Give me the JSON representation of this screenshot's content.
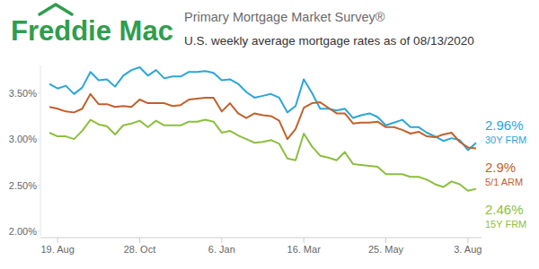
{
  "chart_data": {
    "type": "line",
    "brand": "Freddie Mac",
    "title": "Primary Mortgage Market Survey®",
    "subtitle": "U.S. weekly average mortgage rates as of 08/13/2020",
    "categories": [
      null,
      "19. Aug",
      null,
      null,
      null,
      null,
      null,
      null,
      null,
      null,
      null,
      "28. Oct",
      null,
      null,
      null,
      null,
      null,
      null,
      null,
      null,
      null,
      "6. Jan",
      null,
      null,
      null,
      null,
      null,
      null,
      null,
      null,
      null,
      "16. Mar",
      null,
      null,
      null,
      null,
      null,
      null,
      null,
      null,
      null,
      "25. May",
      null,
      null,
      null,
      null,
      null,
      null,
      null,
      null,
      null,
      "3. Aug",
      null
    ],
    "series": [
      {
        "name": "30Y FRM",
        "color": "#2ba6d8",
        "values": [
          3.6,
          3.55,
          3.58,
          3.49,
          3.56,
          3.73,
          3.64,
          3.65,
          3.57,
          3.69,
          3.75,
          3.78,
          3.69,
          3.75,
          3.66,
          3.68,
          3.68,
          3.73,
          3.73,
          3.74,
          3.72,
          3.64,
          3.65,
          3.6,
          3.51,
          3.45,
          3.47,
          3.49,
          3.45,
          3.29,
          3.36,
          3.65,
          3.5,
          3.33,
          3.33,
          3.31,
          3.33,
          3.23,
          3.26,
          3.28,
          3.24,
          3.15,
          3.18,
          3.21,
          3.13,
          3.13,
          3.07,
          3.03,
          2.98,
          3.01,
          2.99,
          2.88,
          2.96
        ],
        "value_labels": [
          null,
          null,
          null,
          null,
          null,
          null,
          null,
          null,
          null,
          null,
          null,
          null,
          null,
          null,
          null,
          null,
          null,
          null,
          null,
          null,
          null,
          null,
          null,
          null,
          null,
          null,
          null,
          null,
          null,
          null,
          null,
          null,
          null,
          null,
          null,
          null,
          null,
          null,
          null,
          null,
          null,
          null,
          null,
          null,
          null,
          null,
          null,
          null,
          null,
          null,
          null,
          null,
          "2.96%"
        ]
      },
      {
        "name": "5/1 ARM",
        "color": "#c0612b",
        "values": [
          3.35,
          3.33,
          3.3,
          3.29,
          3.33,
          3.49,
          3.38,
          3.38,
          3.35,
          3.36,
          3.35,
          3.43,
          3.39,
          3.39,
          3.39,
          3.36,
          3.37,
          3.43,
          3.44,
          3.45,
          3.45,
          3.3,
          3.39,
          3.28,
          3.23,
          3.28,
          3.26,
          3.25,
          3.2,
          3.0,
          3.11,
          3.34,
          3.39,
          3.4,
          3.34,
          3.28,
          3.28,
          3.17,
          3.18,
          3.18,
          3.19,
          3.13,
          3.13,
          3.1,
          3.06,
          3.08,
          3.03,
          3.02,
          3.05,
          3.07,
          2.97,
          2.91,
          2.9
        ],
        "value_labels": [
          null,
          null,
          null,
          null,
          null,
          null,
          null,
          null,
          null,
          null,
          null,
          null,
          null,
          null,
          null,
          null,
          null,
          null,
          null,
          null,
          null,
          null,
          null,
          null,
          null,
          null,
          null,
          null,
          null,
          null,
          null,
          null,
          null,
          null,
          null,
          null,
          null,
          null,
          null,
          null,
          null,
          null,
          null,
          null,
          null,
          null,
          null,
          null,
          null,
          null,
          null,
          null,
          "2.9%"
        ]
      },
      {
        "name": "15Y FRM",
        "color": "#8cbf3f",
        "values": [
          3.07,
          3.03,
          3.03,
          3.0,
          3.09,
          3.21,
          3.16,
          3.14,
          3.05,
          3.15,
          3.17,
          3.2,
          3.13,
          3.2,
          3.15,
          3.15,
          3.15,
          3.19,
          3.19,
          3.21,
          3.19,
          3.07,
          3.09,
          3.04,
          3.0,
          2.96,
          2.97,
          2.99,
          2.95,
          2.79,
          2.77,
          3.06,
          2.92,
          2.82,
          2.8,
          2.77,
          2.86,
          2.73,
          2.72,
          2.71,
          2.7,
          2.62,
          2.62,
          2.62,
          2.59,
          2.59,
          2.56,
          2.51,
          2.48,
          2.54,
          2.51,
          2.44,
          2.46
        ],
        "value_labels": [
          null,
          null,
          null,
          null,
          null,
          null,
          null,
          null,
          null,
          null,
          null,
          null,
          null,
          null,
          null,
          null,
          null,
          null,
          null,
          null,
          null,
          null,
          null,
          null,
          null,
          null,
          null,
          null,
          null,
          null,
          null,
          null,
          null,
          null,
          null,
          null,
          null,
          null,
          null,
          null,
          null,
          null,
          null,
          null,
          null,
          null,
          null,
          null,
          null,
          null,
          null,
          null,
          "2.46%"
        ]
      }
    ],
    "ylim": [
      1.95,
      3.8
    ],
    "yticks": [
      {
        "value": 2,
        "label": "2.00%"
      },
      {
        "value": 2.5,
        "label": "2.50%"
      },
      {
        "value": 3,
        "label": "3.00%"
      },
      {
        "value": 3.5,
        "label": "3.50%"
      }
    ],
    "grid": false,
    "legend": "right",
    "marker": "none"
  }
}
